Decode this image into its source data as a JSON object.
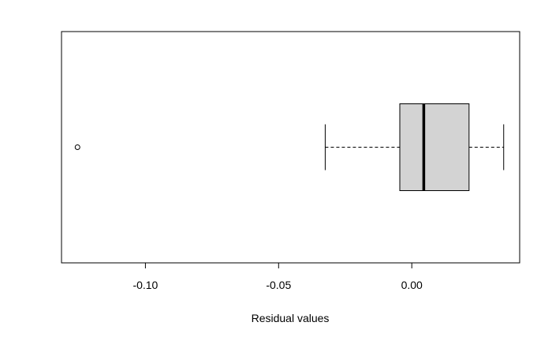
{
  "chart_data": {
    "type": "boxplot",
    "orientation": "horizontal",
    "xlabel": "Residual values",
    "xlim": [
      -0.1315,
      0.0405
    ],
    "ticks": [
      {
        "value": -0.1,
        "label": "-0.10"
      },
      {
        "value": -0.05,
        "label": "-0.05"
      },
      {
        "value": 0.0,
        "label": "0.00"
      }
    ],
    "box": {
      "whisker_low": -0.0325,
      "q1": -0.0045,
      "median": 0.0045,
      "q3": 0.0215,
      "whisker_high": 0.0345,
      "outliers": [
        -0.1255
      ]
    },
    "box_fill": "#d3d3d3",
    "line_color": "#000000"
  }
}
